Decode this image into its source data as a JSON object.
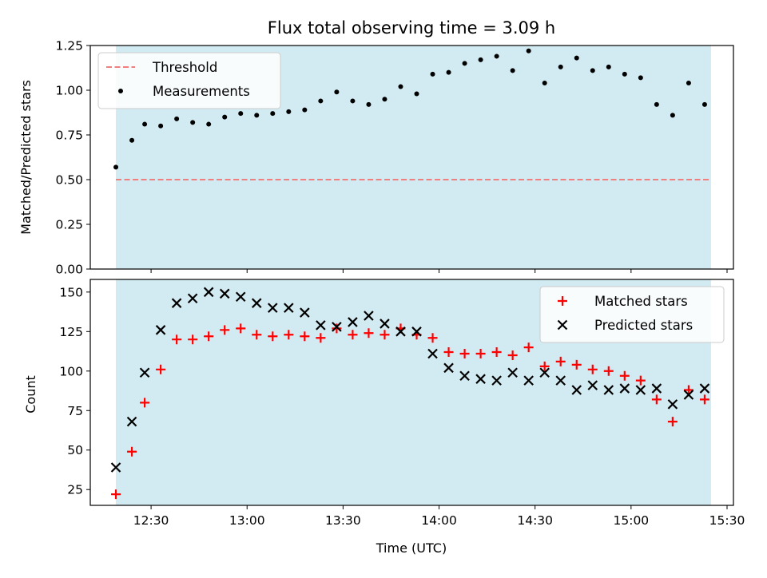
{
  "figure": {
    "title": "Flux total observing time = 3.09 h",
    "xlabel": "Time (UTC)",
    "xticks": [
      "12:30",
      "13:00",
      "13:30",
      "14:00",
      "14:30",
      "15:00",
      "15:30"
    ]
  },
  "chart_data": [
    {
      "type": "scatter",
      "name": "ratio",
      "ylabel": "Matched/Predicted stars",
      "ylim": [
        0,
        1.25
      ],
      "yticks": [
        "0.00",
        "0.25",
        "0.50",
        "0.75",
        "1.00",
        "1.25"
      ],
      "xlim": [
        "12:11",
        "15:32"
      ],
      "shaded_span": [
        "12:19",
        "15:25"
      ],
      "shaded_color": "#add8e6",
      "legend_position": "upper-left",
      "threshold": {
        "name": "Threshold",
        "value": 0.5,
        "color": "#f08080",
        "style": "dashed"
      },
      "series": [
        {
          "name": "Measurements",
          "color": "#000000",
          "marker": "dot",
          "x": [
            "12:19",
            "12:24",
            "12:28",
            "12:33",
            "12:38",
            "12:43",
            "12:48",
            "12:53",
            "12:58",
            "13:03",
            "13:08",
            "13:13",
            "13:18",
            "13:23",
            "13:28",
            "13:33",
            "13:38",
            "13:43",
            "13:48",
            "13:53",
            "13:58",
            "14:03",
            "14:08",
            "14:13",
            "14:18",
            "14:23",
            "14:28",
            "14:33",
            "14:38",
            "14:43",
            "14:48",
            "14:53",
            "14:58",
            "15:03",
            "15:08",
            "15:13",
            "15:18",
            "15:23"
          ],
          "y": [
            0.57,
            0.72,
            0.81,
            0.8,
            0.84,
            0.82,
            0.81,
            0.85,
            0.87,
            0.86,
            0.87,
            0.88,
            0.89,
            0.94,
            0.99,
            0.94,
            0.92,
            0.95,
            1.02,
            0.98,
            1.09,
            1.1,
            1.15,
            1.17,
            1.19,
            1.11,
            1.22,
            1.04,
            1.13,
            1.18,
            1.11,
            1.13,
            1.09,
            1.07,
            0.92,
            0.86,
            1.04,
            0.92
          ]
        }
      ]
    },
    {
      "type": "scatter",
      "name": "counts",
      "ylabel": "Count",
      "ylim": [
        15,
        158
      ],
      "yticks": [
        "25",
        "50",
        "75",
        "100",
        "125",
        "150"
      ],
      "xlim": [
        "12:11",
        "15:32"
      ],
      "shaded_span": [
        "12:19",
        "15:25"
      ],
      "shaded_color": "#add8e6",
      "legend_position": "upper-right",
      "series": [
        {
          "name": "Matched stars",
          "color": "#ff0000",
          "marker": "plus",
          "x": [
            "12:19",
            "12:24",
            "12:28",
            "12:33",
            "12:38",
            "12:43",
            "12:48",
            "12:53",
            "12:58",
            "13:03",
            "13:08",
            "13:13",
            "13:18",
            "13:23",
            "13:28",
            "13:33",
            "13:38",
            "13:43",
            "13:48",
            "13:53",
            "13:58",
            "14:03",
            "14:08",
            "14:13",
            "14:18",
            "14:23",
            "14:28",
            "14:33",
            "14:38",
            "14:43",
            "14:48",
            "14:53",
            "14:58",
            "15:03",
            "15:08",
            "15:13",
            "15:18",
            "15:23"
          ],
          "y": [
            22,
            49,
            80,
            101,
            120,
            120,
            122,
            126,
            127,
            123,
            122,
            123,
            122,
            121,
            127,
            123,
            124,
            123,
            127,
            123,
            121,
            112,
            111,
            111,
            112,
            110,
            115,
            103,
            106,
            104,
            101,
            100,
            97,
            94,
            82,
            68,
            88,
            82
          ]
        },
        {
          "name": "Predicted stars",
          "color": "#000000",
          "marker": "cross",
          "x": [
            "12:19",
            "12:24",
            "12:28",
            "12:33",
            "12:38",
            "12:43",
            "12:48",
            "12:53",
            "12:58",
            "13:03",
            "13:08",
            "13:13",
            "13:18",
            "13:23",
            "13:28",
            "13:33",
            "13:38",
            "13:43",
            "13:48",
            "13:53",
            "13:58",
            "14:03",
            "14:08",
            "14:13",
            "14:18",
            "14:23",
            "14:28",
            "14:33",
            "14:38",
            "14:43",
            "14:48",
            "14:53",
            "14:58",
            "15:03",
            "15:08",
            "15:13",
            "15:18",
            "15:23"
          ],
          "y": [
            39,
            68,
            99,
            126,
            143,
            146,
            150,
            149,
            147,
            143,
            140,
            140,
            137,
            129,
            128,
            131,
            135,
            130,
            125,
            125,
            111,
            102,
            97,
            95,
            94,
            99,
            94,
            99,
            94,
            88,
            91,
            88,
            89,
            88,
            89,
            79,
            85,
            89
          ]
        }
      ]
    }
  ]
}
